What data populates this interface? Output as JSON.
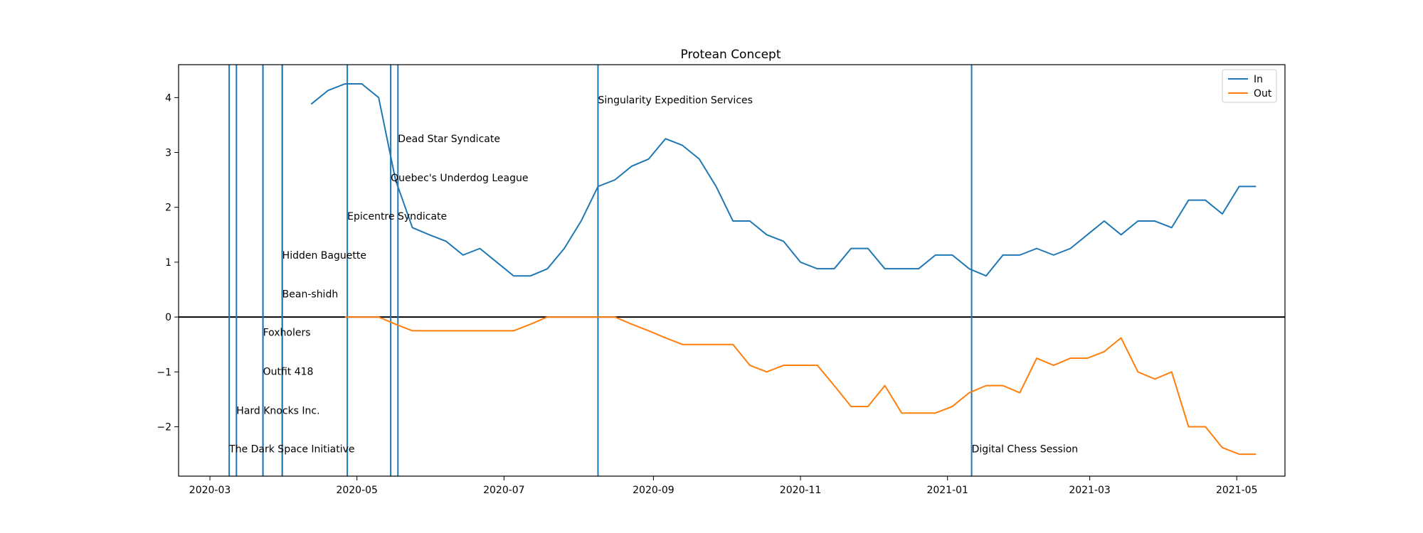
{
  "chart_data": {
    "type": "line",
    "title": "Protean Concept",
    "xlabel": "",
    "ylabel": "",
    "xlim": [
      "2020-02-17",
      "2021-05-21"
    ],
    "ylim": [
      -2.9,
      4.6
    ],
    "x_ticks": [
      "2020-03",
      "2020-05",
      "2020-07",
      "2020-09",
      "2020-11",
      "2021-01",
      "2021-03",
      "2021-05"
    ],
    "y_ticks": [
      -2,
      -1,
      0,
      1,
      2,
      3,
      4
    ],
    "legend_position": "top-right",
    "grid": false,
    "zero_line": true,
    "colors": {
      "In": "#1f77b4",
      "Out": "#ff7f0e",
      "event": "#1f77b4"
    },
    "series": [
      {
        "name": "In",
        "color": "#1f77b4",
        "points": [
          [
            "2020-04-12",
            3.88
          ],
          [
            "2020-04-19",
            4.13
          ],
          [
            "2020-04-26",
            4.25
          ],
          [
            "2020-05-03",
            4.25
          ],
          [
            "2020-05-10",
            4.0
          ],
          [
            "2020-05-17",
            2.5
          ],
          [
            "2020-05-24",
            1.63
          ],
          [
            "2020-05-31",
            1.5
          ],
          [
            "2020-06-07",
            1.38
          ],
          [
            "2020-06-14",
            1.13
          ],
          [
            "2020-06-21",
            1.25
          ],
          [
            "2020-06-28",
            1.0
          ],
          [
            "2020-07-05",
            0.75
          ],
          [
            "2020-07-12",
            0.75
          ],
          [
            "2020-07-19",
            0.88
          ],
          [
            "2020-07-26",
            1.25
          ],
          [
            "2020-08-02",
            1.75
          ],
          [
            "2020-08-09",
            2.38
          ],
          [
            "2020-08-16",
            2.5
          ],
          [
            "2020-08-23",
            2.75
          ],
          [
            "2020-08-30",
            2.88
          ],
          [
            "2020-09-06",
            3.25
          ],
          [
            "2020-09-13",
            3.13
          ],
          [
            "2020-09-20",
            2.88
          ],
          [
            "2020-09-27",
            2.38
          ],
          [
            "2020-10-04",
            1.75
          ],
          [
            "2020-10-11",
            1.75
          ],
          [
            "2020-10-18",
            1.5
          ],
          [
            "2020-10-25",
            1.38
          ],
          [
            "2020-11-01",
            1.0
          ],
          [
            "2020-11-08",
            0.88
          ],
          [
            "2020-11-15",
            0.88
          ],
          [
            "2020-11-22",
            1.25
          ],
          [
            "2020-11-29",
            1.25
          ],
          [
            "2020-12-06",
            0.88
          ],
          [
            "2020-12-13",
            0.88
          ],
          [
            "2020-12-20",
            0.88
          ],
          [
            "2020-12-27",
            1.13
          ],
          [
            "2021-01-03",
            1.13
          ],
          [
            "2021-01-10",
            0.88
          ],
          [
            "2021-01-17",
            0.75
          ],
          [
            "2021-01-24",
            1.13
          ],
          [
            "2021-01-31",
            1.13
          ],
          [
            "2021-02-07",
            1.25
          ],
          [
            "2021-02-14",
            1.13
          ],
          [
            "2021-02-21",
            1.25
          ],
          [
            "2021-02-28",
            1.5
          ],
          [
            "2021-03-07",
            1.75
          ],
          [
            "2021-03-14",
            1.5
          ],
          [
            "2021-03-21",
            1.75
          ],
          [
            "2021-03-28",
            1.75
          ],
          [
            "2021-04-04",
            1.63
          ],
          [
            "2021-04-11",
            2.13
          ],
          [
            "2021-04-18",
            2.13
          ],
          [
            "2021-04-25",
            1.88
          ],
          [
            "2021-05-02",
            2.38
          ],
          [
            "2021-05-09",
            2.38
          ]
        ]
      },
      {
        "name": "Out",
        "color": "#ff7f0e",
        "points": [
          [
            "2020-04-26",
            0.0
          ],
          [
            "2020-05-03",
            0.0
          ],
          [
            "2020-05-10",
            0.0
          ],
          [
            "2020-05-17",
            -0.13
          ],
          [
            "2020-05-24",
            -0.25
          ],
          [
            "2020-05-31",
            -0.25
          ],
          [
            "2020-06-07",
            -0.25
          ],
          [
            "2020-06-14",
            -0.25
          ],
          [
            "2020-06-21",
            -0.25
          ],
          [
            "2020-06-28",
            -0.25
          ],
          [
            "2020-07-05",
            -0.25
          ],
          [
            "2020-07-12",
            -0.13
          ],
          [
            "2020-07-19",
            0.0
          ],
          [
            "2020-07-26",
            0.0
          ],
          [
            "2020-08-02",
            0.0
          ],
          [
            "2020-08-09",
            0.0
          ],
          [
            "2020-08-16",
            0.0
          ],
          [
            "2020-08-23",
            -0.13
          ],
          [
            "2020-08-30",
            -0.25
          ],
          [
            "2020-09-06",
            -0.38
          ],
          [
            "2020-09-13",
            -0.5
          ],
          [
            "2020-09-20",
            -0.5
          ],
          [
            "2020-09-27",
            -0.5
          ],
          [
            "2020-10-04",
            -0.5
          ],
          [
            "2020-10-11",
            -0.88
          ],
          [
            "2020-10-18",
            -1.0
          ],
          [
            "2020-10-25",
            -0.88
          ],
          [
            "2020-11-01",
            -0.88
          ],
          [
            "2020-11-08",
            -0.88
          ],
          [
            "2020-11-15",
            -1.25
          ],
          [
            "2020-11-22",
            -1.63
          ],
          [
            "2020-11-29",
            -1.63
          ],
          [
            "2020-12-06",
            -1.25
          ],
          [
            "2020-12-13",
            -1.75
          ],
          [
            "2020-12-20",
            -1.75
          ],
          [
            "2020-12-27",
            -1.75
          ],
          [
            "2021-01-03",
            -1.63
          ],
          [
            "2021-01-10",
            -1.38
          ],
          [
            "2021-01-17",
            -1.25
          ],
          [
            "2021-01-24",
            -1.25
          ],
          [
            "2021-01-31",
            -1.38
          ],
          [
            "2021-02-07",
            -0.75
          ],
          [
            "2021-02-14",
            -0.88
          ],
          [
            "2021-02-21",
            -0.75
          ],
          [
            "2021-02-28",
            -0.75
          ],
          [
            "2021-03-07",
            -0.63
          ],
          [
            "2021-03-14",
            -0.38
          ],
          [
            "2021-03-21",
            -1.0
          ],
          [
            "2021-03-28",
            -1.13
          ],
          [
            "2021-04-04",
            -1.0
          ],
          [
            "2021-04-11",
            -2.0
          ],
          [
            "2021-04-18",
            -2.0
          ],
          [
            "2021-04-25",
            -2.38
          ],
          [
            "2021-05-02",
            -2.5
          ],
          [
            "2021-05-09",
            -2.5
          ]
        ]
      }
    ],
    "events": [
      {
        "date": "2020-03-09",
        "label": "The Dark Space Initiative",
        "label_y": -2.4
      },
      {
        "date": "2020-03-12",
        "label": "Hard Knocks Inc.",
        "label_y": -1.7
      },
      {
        "date": "2020-03-23",
        "label": "Outfit 418",
        "label_y": -0.99
      },
      {
        "date": "2020-03-23",
        "label": "Foxholers",
        "label_y": -0.28
      },
      {
        "date": "2020-03-31",
        "label": "Bean-shidh",
        "label_y": 0.42
      },
      {
        "date": "2020-03-31",
        "label": "Hidden Baguette",
        "label_y": 1.13
      },
      {
        "date": "2020-04-27",
        "label": "Epicentre Syndicate",
        "label_y": 1.84
      },
      {
        "date": "2020-05-15",
        "label": "Quebec's Underdog League",
        "label_y": 2.54
      },
      {
        "date": "2020-05-18",
        "label": "Dead Star Syndicate",
        "label_y": 3.25
      },
      {
        "date": "2020-08-09",
        "label": "Singularity Expedition Services",
        "label_y": 3.96
      },
      {
        "date": "2021-01-11",
        "label": "Digital Chess Session",
        "label_y": -2.4
      }
    ]
  }
}
